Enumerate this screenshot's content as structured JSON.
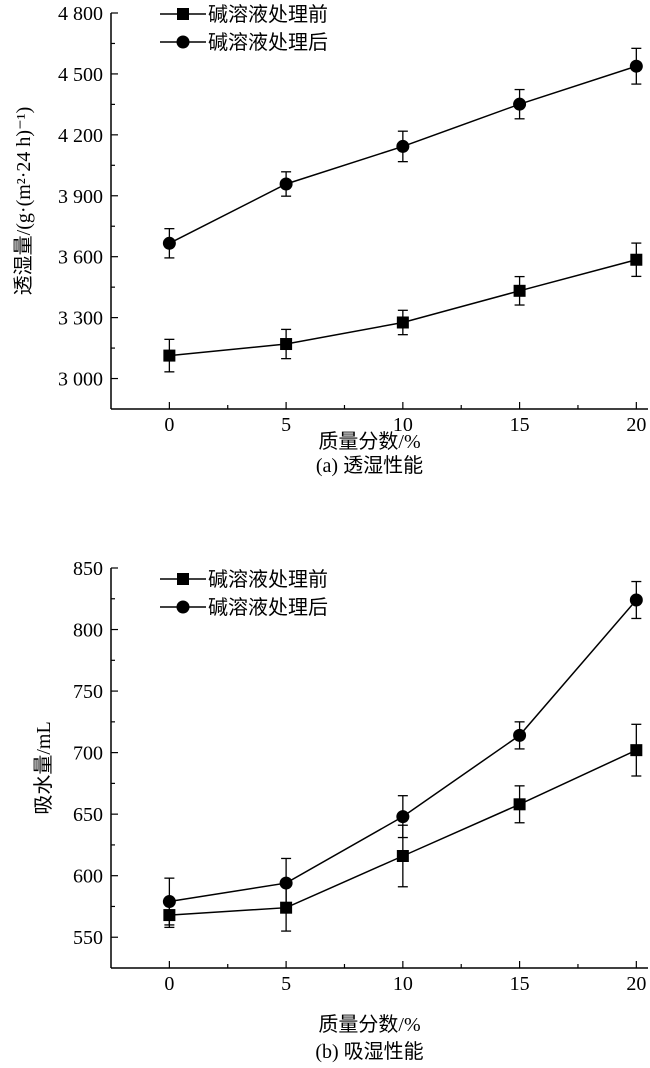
{
  "chart_data": [
    {
      "type": "line",
      "title": "",
      "caption": "(a) 透湿性能",
      "xlabel": "质量分数/%",
      "ylabel": "透湿量/(g·(m²·24 h)⁻¹)",
      "xlim": [
        -2.5,
        20.5
      ],
      "ylim": [
        2850,
        4800
      ],
      "xticks": [
        0,
        5,
        10,
        15,
        20
      ],
      "xtick_labels": [
        "0",
        "5",
        "10",
        "15",
        "20"
      ],
      "yticks": [
        3000,
        3300,
        3600,
        3900,
        4200,
        4500,
        4800
      ],
      "ytick_labels": [
        "3 000",
        "3 300",
        "3 600",
        "3 900",
        "4 200",
        "4 500",
        "4 800"
      ],
      "grid": false,
      "legend_position": "top-left",
      "x": [
        0,
        5,
        10,
        15,
        20
      ],
      "series": [
        {
          "name": "碱溶液处理前",
          "marker": "square",
          "values": [
            3113,
            3170,
            3276,
            3432,
            3585
          ],
          "errors": [
            80,
            72,
            60,
            70,
            82
          ]
        },
        {
          "name": "碱溶液处理后",
          "marker": "circle",
          "values": [
            3666,
            3958,
            4143,
            4351,
            4538
          ],
          "errors": [
            72,
            60,
            75,
            72,
            88
          ]
        }
      ]
    },
    {
      "type": "line",
      "title": "",
      "caption": "(b) 吸湿性能",
      "xlabel": "质量分数/%",
      "ylabel": "吸水量/mL",
      "xlim": [
        -2.5,
        20.5
      ],
      "ylim": [
        525,
        850
      ],
      "xticks": [
        0,
        5,
        10,
        15,
        20
      ],
      "xtick_labels": [
        "0",
        "5",
        "10",
        "15",
        "20"
      ],
      "yticks": [
        550,
        600,
        650,
        700,
        750,
        800,
        850
      ],
      "ytick_labels": [
        "550",
        "600",
        "650",
        "700",
        "750",
        "800",
        "850"
      ],
      "grid": false,
      "legend_position": "top-left",
      "x": [
        0,
        5,
        10,
        15,
        20
      ],
      "series": [
        {
          "name": "碱溶液处理前",
          "marker": "square",
          "values": [
            568,
            574,
            616,
            658,
            702
          ],
          "errors": [
            10,
            19,
            25,
            15,
            21
          ]
        },
        {
          "name": "碱溶液处理后",
          "marker": "circle",
          "values": [
            579,
            594,
            648,
            714,
            824
          ],
          "errors": [
            19,
            20,
            17,
            11,
            15
          ]
        }
      ]
    }
  ]
}
